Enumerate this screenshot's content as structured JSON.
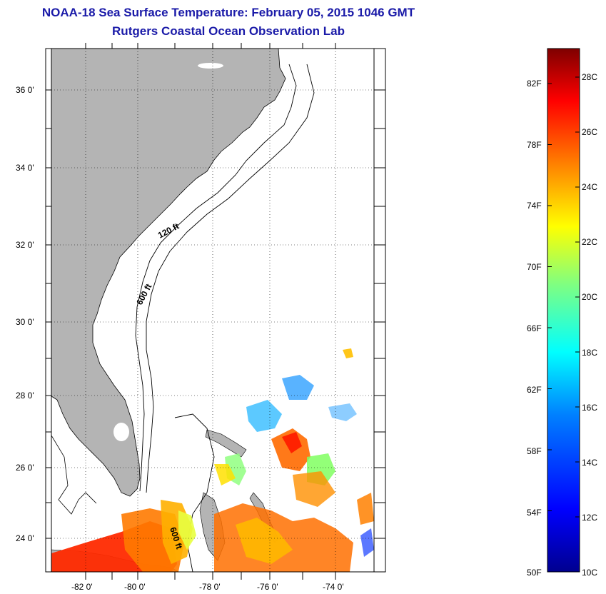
{
  "title": "NOAA-18 Sea Surface Temperature:  February 05, 2015 1046 GMT",
  "subtitle": "Rutgers Coastal Ocean Observation Lab",
  "axes": {
    "lat_ticks": [
      "36 0'",
      "34 0'",
      "32 0'",
      "30 0'",
      "28 0'",
      "26 0'",
      "24 0'"
    ],
    "lon_ticks": [
      "-82 0'",
      "-80 0'",
      "-78 0'",
      "-76 0'",
      "-74 0'"
    ]
  },
  "contours": [
    "120 ft",
    "600 ft",
    "600 ft"
  ],
  "colorbar": {
    "fahrenheit": [
      "82F",
      "78F",
      "74F",
      "70F",
      "66F",
      "62F",
      "58F",
      "54F",
      "50F"
    ],
    "celsius": [
      "28C",
      "26C",
      "24C",
      "22C",
      "20C",
      "18C",
      "16C",
      "14C",
      "12C",
      "10C"
    ],
    "colors": [
      "#7f0000",
      "#ff0000",
      "#ff8000",
      "#ffff00",
      "#80ff80",
      "#00ffff",
      "#0080ff",
      "#0000ff",
      "#00008f"
    ]
  },
  "colors": {
    "land": "#b4b4b4",
    "title": "#1a1aa8"
  }
}
